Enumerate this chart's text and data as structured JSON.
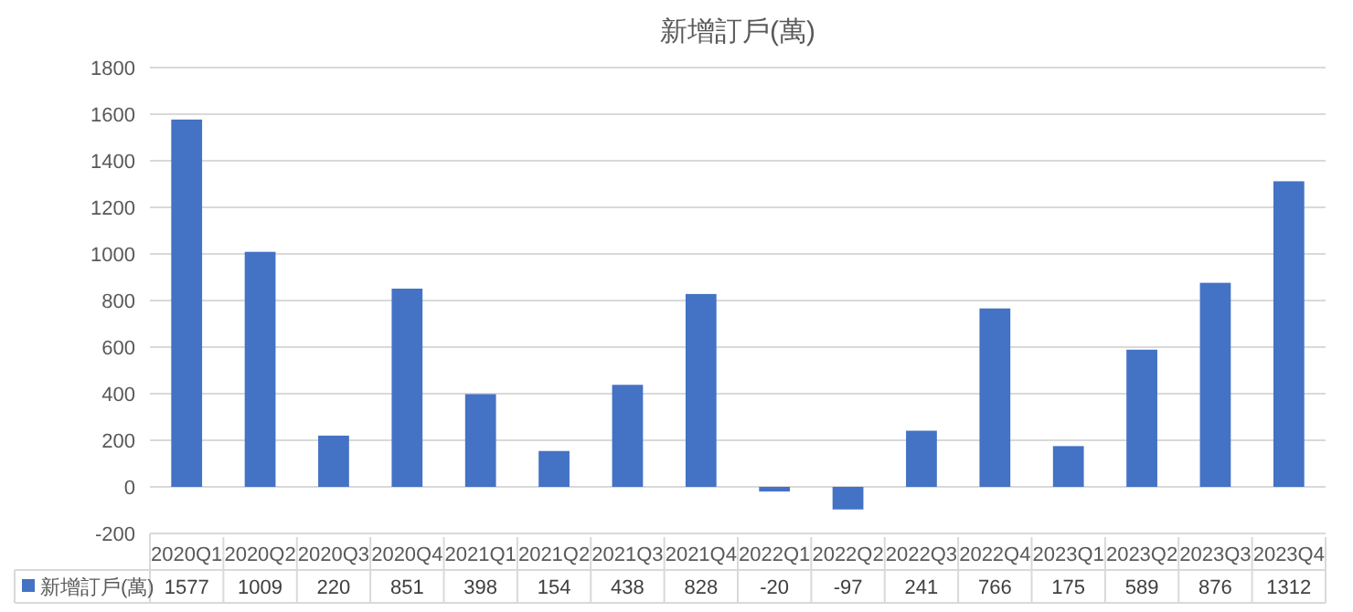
{
  "chart_data": {
    "type": "bar",
    "title": "新增訂戶(萬)",
    "categories": [
      "2020Q1",
      "2020Q2",
      "2020Q3",
      "2020Q4",
      "2021Q1",
      "2021Q2",
      "2021Q3",
      "2021Q4",
      "2022Q1",
      "2022Q2",
      "2022Q3",
      "2022Q4",
      "2023Q1",
      "2023Q2",
      "2023Q3",
      "2023Q4"
    ],
    "series": [
      {
        "name": "新增訂戶(萬)",
        "color": "#4472c4",
        "values": [
          1577,
          1009,
          220,
          851,
          398,
          154,
          438,
          828,
          -20,
          -97,
          241,
          766,
          175,
          589,
          876,
          1312
        ]
      }
    ],
    "ylim": [
      -200,
      1800
    ],
    "yticks": [
      -200,
      0,
      200,
      400,
      600,
      800,
      1000,
      1200,
      1400,
      1600,
      1800
    ],
    "grid": "y",
    "data_labels": true,
    "legend": "bottom"
  }
}
